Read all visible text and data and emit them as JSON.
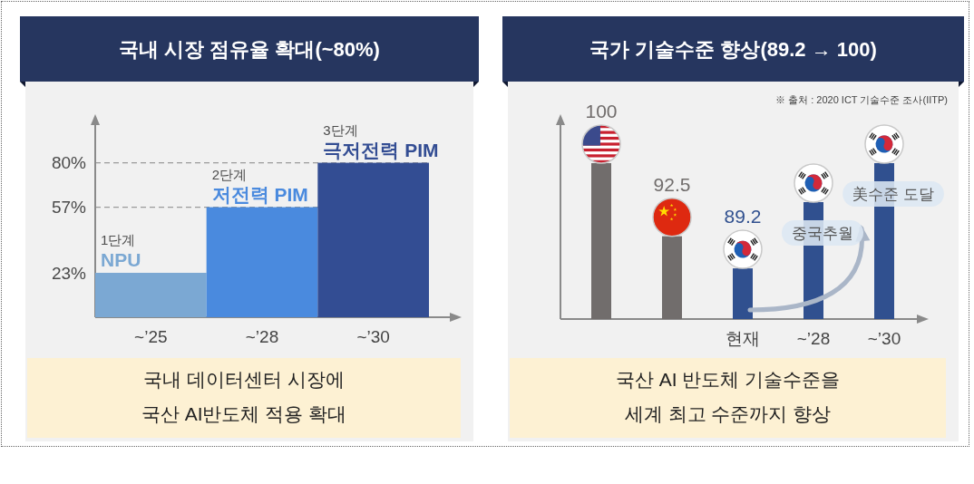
{
  "chart_data": [
    {
      "type": "bar",
      "title": "국내 시장 점유율 확대(~80%)",
      "categories": [
        "~’25",
        "~’28",
        "~’30"
      ],
      "values": [
        23,
        57,
        80
      ],
      "colors": [
        "#7ba8d3",
        "#4a8ade",
        "#334d93"
      ],
      "ylim": [
        0,
        100
      ],
      "yticks": [
        {
          "value": 23,
          "label": "23%"
        },
        {
          "value": 57,
          "label": "57%"
        },
        {
          "value": 80,
          "label": "80%"
        }
      ],
      "ref_lines": [
        {
          "axis": "y",
          "value": 57,
          "color": "#9a9a9a",
          "line_style": "dashed"
        },
        {
          "axis": "y",
          "value": 80,
          "color": "#9a9a9a",
          "line_style": "dashed"
        }
      ],
      "annotations": [
        {
          "text": "1단계\nNPU",
          "x": "~’25",
          "y": 23
        },
        {
          "text": "2단계\n저전력 PIM",
          "x": "~’28",
          "y": 57
        },
        {
          "text": "3단계\n극저전력 PIM",
          "x": "~’30",
          "y": 80
        },
        "국내 데이터센터 시장에\n국산 AI반도체 적용 확대"
      ]
    },
    {
      "type": "bar",
      "title": "국가 기술수준 향상(89.2 → 100)",
      "categories": [
        null,
        null,
        "현재",
        "~’28",
        "~’30"
      ],
      "values": [
        100,
        92.5,
        89.2,
        96,
        100
      ],
      "colors": [
        "#716d6c",
        "#716d6c",
        "#30508f",
        "#30508f",
        "#30508f"
      ],
      "value_labels": [
        "100",
        "92.5",
        "89.2",
        null,
        null
      ],
      "ylim": [
        84,
        104
      ],
      "tick_labels": "x",
      "annotations": [
        {
          "text": "중국추월",
          "x": "~’28",
          "y": 96
        },
        {
          "text": "美수준 도달",
          "x": "~’30",
          "y": 100
        },
        "※ 출처 : 2020 ICT 기술수준 조사(IITP)",
        "국산 AI 반도체 기술수준을\n세계 최고 수준까지 향상"
      ]
    }
  ]
}
